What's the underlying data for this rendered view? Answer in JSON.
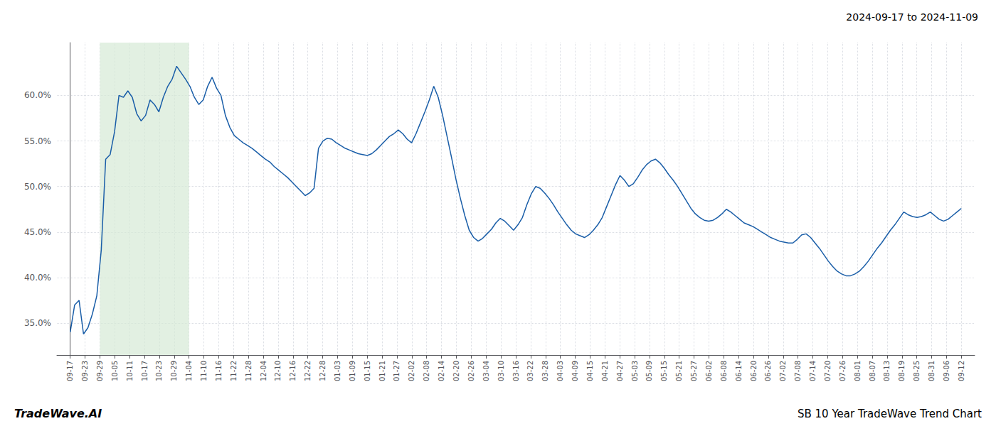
{
  "chart_data": {
    "type": "line",
    "title": "2024-09-17 to 2024-11-09",
    "annotations": [
      "TradeWave.AI",
      "SB 10 Year TradeWave Trend Chart"
    ],
    "color": "#1a5ea8",
    "grid": true,
    "shade": {
      "from": 6.7,
      "to": 26.8,
      "color": "#d6ead6"
    },
    "ylim": [
      0.315,
      0.658
    ],
    "yticks": [
      {
        "value": 0.35,
        "label": "35.0%"
      },
      {
        "value": 0.4,
        "label": "40.0%"
      },
      {
        "value": 0.45,
        "label": "45.0%"
      },
      {
        "value": 0.5,
        "label": "50.0%"
      },
      {
        "value": 0.55,
        "label": "55.0%"
      },
      {
        "value": 0.6,
        "label": "60.0%"
      }
    ],
    "xlim": [
      -3,
      204
    ],
    "xticks": [
      {
        "value": 0,
        "label": "09-17"
      },
      {
        "value": 3.35,
        "label": "09-23"
      },
      {
        "value": 6.7,
        "label": "09-29"
      },
      {
        "value": 10.05,
        "label": "10-05"
      },
      {
        "value": 13.4,
        "label": "10-11"
      },
      {
        "value": 16.75,
        "label": "10-17"
      },
      {
        "value": 20.1,
        "label": "10-23"
      },
      {
        "value": 23.45,
        "label": "10-29"
      },
      {
        "value": 26.8,
        "label": "11-04"
      },
      {
        "value": 30.15,
        "label": "11-10"
      },
      {
        "value": 33.5,
        "label": "11-16"
      },
      {
        "value": 36.85,
        "label": "11-22"
      },
      {
        "value": 40.2,
        "label": "11-28"
      },
      {
        "value": 43.55,
        "label": "12-04"
      },
      {
        "value": 46.9,
        "label": "12-10"
      },
      {
        "value": 50.25,
        "label": "12-16"
      },
      {
        "value": 53.6,
        "label": "12-22"
      },
      {
        "value": 56.95,
        "label": "12-28"
      },
      {
        "value": 60.3,
        "label": "01-03"
      },
      {
        "value": 63.65,
        "label": "01-09"
      },
      {
        "value": 67,
        "label": "01-15"
      },
      {
        "value": 70.35,
        "label": "01-21"
      },
      {
        "value": 73.7,
        "label": "01-27"
      },
      {
        "value": 77.05,
        "label": "02-02"
      },
      {
        "value": 80.4,
        "label": "02-08"
      },
      {
        "value": 83.75,
        "label": "02-14"
      },
      {
        "value": 87.1,
        "label": "02-20"
      },
      {
        "value": 90.45,
        "label": "02-26"
      },
      {
        "value": 93.8,
        "label": "03-04"
      },
      {
        "value": 97.15,
        "label": "03-10"
      },
      {
        "value": 100.5,
        "label": "03-16"
      },
      {
        "value": 103.85,
        "label": "03-22"
      },
      {
        "value": 107.2,
        "label": "03-28"
      },
      {
        "value": 110.55,
        "label": "04-03"
      },
      {
        "value": 113.9,
        "label": "04-09"
      },
      {
        "value": 117.25,
        "label": "04-15"
      },
      {
        "value": 120.6,
        "label": "04-21"
      },
      {
        "value": 123.95,
        "label": "04-27"
      },
      {
        "value": 127.3,
        "label": "05-03"
      },
      {
        "value": 130.65,
        "label": "05-09"
      },
      {
        "value": 134,
        "label": "05-15"
      },
      {
        "value": 137.35,
        "label": "05-21"
      },
      {
        "value": 140.7,
        "label": "05-27"
      },
      {
        "value": 144.05,
        "label": "06-02"
      },
      {
        "value": 147.4,
        "label": "06-08"
      },
      {
        "value": 150.75,
        "label": "06-14"
      },
      {
        "value": 154.1,
        "label": "06-20"
      },
      {
        "value": 157.45,
        "label": "06-26"
      },
      {
        "value": 160.8,
        "label": "07-02"
      },
      {
        "value": 164.15,
        "label": "07-08"
      },
      {
        "value": 167.5,
        "label": "07-14"
      },
      {
        "value": 170.85,
        "label": "07-20"
      },
      {
        "value": 174.2,
        "label": "07-26"
      },
      {
        "value": 177.55,
        "label": "08-01"
      },
      {
        "value": 180.9,
        "label": "08-07"
      },
      {
        "value": 184.25,
        "label": "08-13"
      },
      {
        "value": 187.6,
        "label": "08-19"
      },
      {
        "value": 190.95,
        "label": "08-25"
      },
      {
        "value": 194.3,
        "label": "08-31"
      },
      {
        "value": 197.65,
        "label": "09-06"
      },
      {
        "value": 201,
        "label": "09-12"
      }
    ],
    "x": [
      0,
      1,
      2,
      3,
      4,
      5,
      6,
      7,
      8,
      9,
      10,
      11,
      12,
      13,
      14,
      15,
      16,
      17,
      18,
      19,
      20,
      21,
      22,
      23,
      24,
      25,
      26,
      27,
      28,
      29,
      30,
      31,
      32,
      33,
      34,
      35,
      36,
      37,
      38,
      39,
      40,
      41,
      42,
      43,
      44,
      45,
      46,
      47,
      48,
      49,
      50,
      51,
      52,
      53,
      54,
      55,
      56,
      57,
      58,
      59,
      60,
      61,
      62,
      63,
      64,
      65,
      66,
      67,
      68,
      69,
      70,
      71,
      72,
      73,
      74,
      75,
      76,
      77,
      78,
      79,
      80,
      81,
      82,
      83,
      84,
      85,
      86,
      87,
      88,
      89,
      90,
      91,
      92,
      93,
      94,
      95,
      96,
      97,
      98,
      99,
      100,
      101,
      102,
      103,
      104,
      105,
      106,
      107,
      108,
      109,
      110,
      111,
      112,
      113,
      114,
      115,
      116,
      117,
      118,
      119,
      120,
      121,
      122,
      123,
      124,
      125,
      126,
      127,
      128,
      129,
      130,
      131,
      132,
      133,
      134,
      135,
      136,
      137,
      138,
      139,
      140,
      141,
      142,
      143,
      144,
      145,
      146,
      147,
      148,
      149,
      150,
      151,
      152,
      153,
      154,
      155,
      156,
      157,
      158,
      159,
      160,
      161,
      162,
      163,
      164,
      165,
      166,
      167,
      168,
      169,
      170,
      171,
      172,
      173,
      174,
      175,
      176,
      177,
      178,
      179,
      180,
      181,
      182,
      183,
      184,
      185,
      186,
      187,
      188,
      189,
      190,
      191,
      192,
      193,
      194,
      195,
      196,
      197,
      198,
      199,
      200,
      201
    ],
    "values": [
      0.34,
      0.37,
      0.375,
      0.338,
      0.345,
      0.36,
      0.38,
      0.43,
      0.53,
      0.535,
      0.56,
      0.6,
      0.598,
      0.605,
      0.598,
      0.58,
      0.572,
      0.578,
      0.595,
      0.59,
      0.582,
      0.598,
      0.61,
      0.618,
      0.632,
      0.625,
      0.618,
      0.61,
      0.598,
      0.59,
      0.595,
      0.61,
      0.62,
      0.608,
      0.6,
      0.578,
      0.565,
      0.556,
      0.552,
      0.548,
      0.545,
      0.542,
      0.538,
      0.534,
      0.53,
      0.527,
      0.522,
      0.518,
      0.514,
      0.51,
      0.505,
      0.5,
      0.495,
      0.49,
      0.493,
      0.498,
      0.542,
      0.55,
      0.553,
      0.552,
      0.548,
      0.545,
      0.542,
      0.54,
      0.538,
      0.536,
      0.535,
      0.534,
      0.536,
      0.54,
      0.545,
      0.55,
      0.555,
      0.558,
      0.562,
      0.558,
      0.552,
      0.548,
      0.558,
      0.57,
      0.582,
      0.595,
      0.61,
      0.598,
      0.578,
      0.555,
      0.532,
      0.508,
      0.487,
      0.468,
      0.452,
      0.444,
      0.44,
      0.443,
      0.448,
      0.453,
      0.46,
      0.465,
      0.462,
      0.457,
      0.452,
      0.458,
      0.466,
      0.48,
      0.492,
      0.5,
      0.498,
      0.493,
      0.487,
      0.48,
      0.472,
      0.465,
      0.458,
      0.452,
      0.448,
      0.446,
      0.444,
      0.447,
      0.452,
      0.458,
      0.466,
      0.478,
      0.49,
      0.502,
      0.512,
      0.507,
      0.5,
      0.503,
      0.51,
      0.518,
      0.524,
      0.528,
      0.53,
      0.526,
      0.52,
      0.513,
      0.507,
      0.5,
      0.492,
      0.484,
      0.476,
      0.47,
      0.466,
      0.463,
      0.462,
      0.463,
      0.466,
      0.47,
      0.475,
      0.472,
      0.468,
      0.464,
      0.46,
      0.458,
      0.456,
      0.453,
      0.45,
      0.447,
      0.444,
      0.442,
      0.44,
      0.439,
      0.438,
      0.438,
      0.442,
      0.447,
      0.448,
      0.444,
      0.438,
      0.432,
      0.425,
      0.418,
      0.412,
      0.407,
      0.404,
      0.402,
      0.402,
      0.404,
      0.407,
      0.412,
      0.418,
      0.425,
      0.432,
      0.438,
      0.445,
      0.452,
      0.458,
      0.465,
      0.472,
      0.469,
      0.467,
      0.466,
      0.467,
      0.469,
      0.472,
      0.468,
      0.464,
      0.462,
      0.464,
      0.468,
      0.472,
      0.476
    ]
  }
}
